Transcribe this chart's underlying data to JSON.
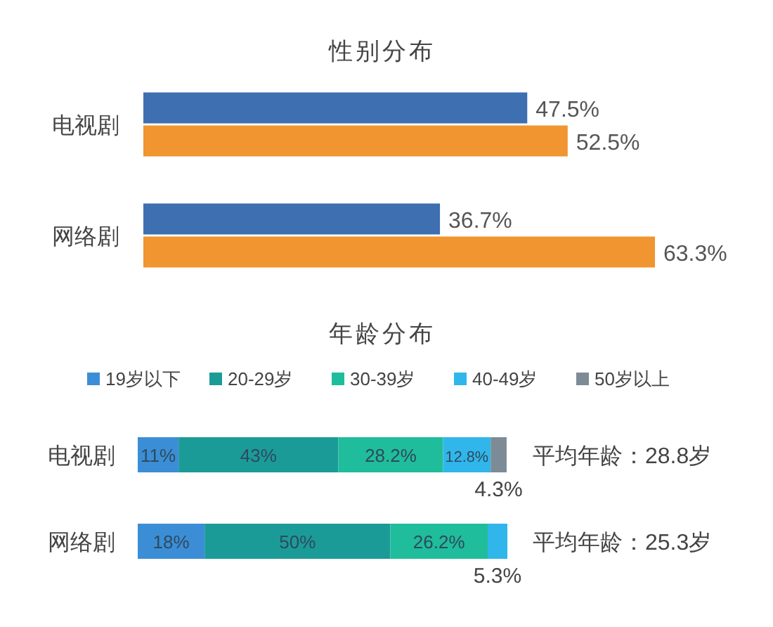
{
  "chart_data": [
    {
      "type": "bar",
      "orientation": "horizontal",
      "title": "性别分布",
      "categories": [
        "电视剧",
        "网络剧"
      ],
      "series": [
        {
          "color": "#3d6fb1",
          "values": [
            47.5,
            36.7
          ],
          "value_labels": [
            "47.5%",
            "36.7%"
          ]
        },
        {
          "color": "#f0952f",
          "values": [
            52.5,
            63.3
          ],
          "value_labels": [
            "52.5%",
            "63.3%"
          ]
        }
      ]
    },
    {
      "type": "bar",
      "orientation": "horizontal",
      "stacked": true,
      "title": "年龄分布",
      "legend": "top",
      "categories": [
        "电视剧",
        "网络剧"
      ],
      "series": [
        {
          "name": "19岁以下",
          "color": "#3b8ed6",
          "values": [
            11,
            18
          ],
          "value_labels": [
            "11%",
            "18%"
          ]
        },
        {
          "name": "20-29岁",
          "color": "#1b9b98",
          "values": [
            43,
            50
          ],
          "value_labels": [
            "43%",
            "50%"
          ]
        },
        {
          "name": "30-39岁",
          "color": "#1fbd9b",
          "values": [
            28.2,
            26.2
          ],
          "value_labels": [
            "28.2%",
            "26.2%"
          ]
        },
        {
          "name": "40-49岁",
          "color": "#30b6ea",
          "values": [
            12.8,
            5.3
          ],
          "value_labels": [
            "12.8%",
            "5.3%"
          ]
        },
        {
          "name": "50岁以上",
          "color": "#7d8b96",
          "values": [
            4.3,
            null
          ],
          "value_labels": [
            "4.3%",
            null
          ]
        }
      ],
      "annotations": [
        "平均年龄：28.8岁",
        "平均年龄：25.3岁"
      ]
    }
  ]
}
